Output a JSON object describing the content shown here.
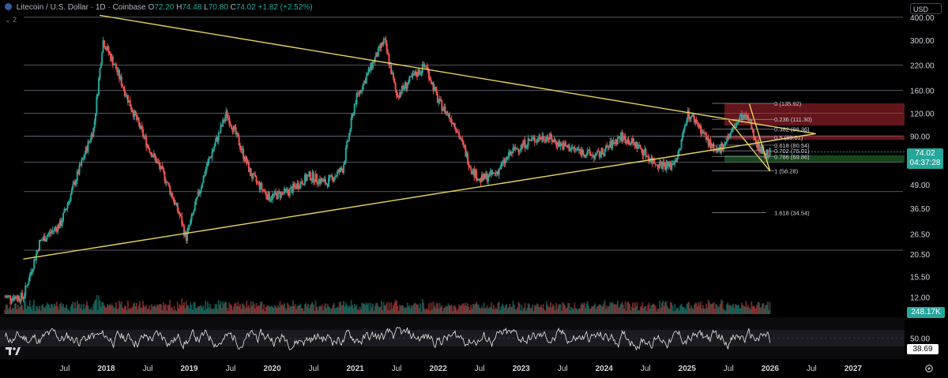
{
  "header": {
    "symbol_label": "Litecoin / U.S. Dollar · 1D · Coinbase",
    "open_label": "O",
    "open": "72.20",
    "high_label": "H",
    "high": "74.48",
    "low_label": "L",
    "low": "70.80",
    "close_label": "C",
    "close": "74.02",
    "change": "+1.82 (+2.52%)",
    "indicator_count": "2",
    "currency": "USD"
  },
  "price_tag": {
    "price": "74.02",
    "countdown": "04:37:28"
  },
  "volume_tag": "248.17K",
  "rsi_tag": "38.69",
  "colors": {
    "up": "#26a69a",
    "down": "#ef5350",
    "trendline": "#e6d25e",
    "grid": "#2a2e39",
    "fib_line": "#9598a1"
  },
  "icons": {
    "logo": "tradingview-logo-icon",
    "settings": "gear-icon",
    "symbol": "litecoin-icon"
  },
  "chart_data": [
    {
      "type": "candlestick",
      "title": "Litecoin / U.S. Dollar · 1D · Coinbase",
      "y_scale": "log",
      "ylim": [
        9.5,
        450
      ],
      "x_ticks": [
        "Jul",
        "2018",
        "Jul",
        "2019",
        "Jul",
        "2020",
        "Jul",
        "2021",
        "Jul",
        "2022",
        "Jul",
        "2023",
        "Jul",
        "2024",
        "Jul",
        "2025",
        "Jul",
        "2026",
        "Jul",
        "2027"
      ],
      "y_ticks": [
        "400.00",
        "300.00",
        "220.00",
        "160.00",
        "120.00",
        "90.00",
        "49.00",
        "36.50",
        "26.50",
        "20.50",
        "15.50",
        "12.00"
      ],
      "horizontal_levels": [
        400,
        220,
        160,
        120,
        90,
        65,
        45,
        21.6
      ],
      "series": [
        {
          "x": [
            2017.0,
            2017.2,
            2017.45,
            2017.65,
            2017.85,
            2017.96,
            2018.1,
            2018.3,
            2018.5,
            2018.7,
            2018.9,
            2018.96,
            2019.2,
            2019.45,
            2019.55,
            2019.75,
            2019.96,
            2020.2,
            2020.45,
            2020.65,
            2020.85,
            2021.0,
            2021.2,
            2021.35,
            2021.5,
            2021.7,
            2021.85,
            2022.0,
            2022.2,
            2022.4,
            2022.5,
            2022.7,
            2022.9,
            2023.1,
            2023.3,
            2023.5,
            2023.7,
            2023.9,
            2024.0,
            2024.2,
            2024.4,
            2024.6,
            2024.8,
            2024.9,
            2025.0,
            2025.1,
            2025.25,
            2025.35,
            2025.5,
            2025.65,
            2025.75,
            2025.85,
            2025.95,
            2026.0
          ],
          "y": [
            12,
            24,
            30,
            55,
            100,
            300,
            220,
            130,
            80,
            55,
            32,
            25,
            60,
            120,
            95,
            55,
            42,
            45,
            55,
            50,
            60,
            140,
            220,
            300,
            150,
            190,
            220,
            140,
            105,
            60,
            52,
            57,
            75,
            85,
            90,
            80,
            75,
            70,
            75,
            90,
            80,
            65,
            62,
            72,
            120,
            110,
            85,
            72,
            90,
            115,
            110,
            80,
            72,
            74.02
          ]
        }
      ],
      "last_price": 74.02,
      "trendlines": [
        {
          "from": [
            2017.92,
            410
          ],
          "to": [
            2026.55,
            93
          ]
        },
        {
          "from": [
            2017.0,
            19.3
          ],
          "to": [
            2026.55,
            93
          ]
        },
        {
          "from": [
            2025.5,
            110
          ],
          "to": [
            2026.0,
            58
          ]
        },
        {
          "from": [
            2025.75,
            135
          ],
          "to": [
            2026.0,
            58
          ]
        }
      ],
      "fib_levels": [
        {
          "label": "0 (135.92)",
          "value": 135.92
        },
        {
          "label": "0.236 (111.30)",
          "value": 111.3
        },
        {
          "label": "0.382 (98.36)",
          "value": 98.36
        },
        {
          "label": "0.5 (89.01)",
          "value": 89.01
        },
        {
          "label": "0.618 (80.54)",
          "value": 80.54
        },
        {
          "label": "0.702 (75.01)",
          "value": 75.01
        },
        {
          "label": "0.786 (69.86)",
          "value": 69.86
        },
        {
          "label": "1 (58.28)",
          "value": 58.28
        },
        {
          "label": "1.618 (34.54)",
          "value": 34.54
        }
      ],
      "zones": [
        {
          "from": 103,
          "to": 136,
          "color": "#b22833"
        },
        {
          "from": 86,
          "to": 91,
          "color": "#b22833"
        },
        {
          "from": 65,
          "to": 71,
          "color": "#2e7d32"
        }
      ]
    },
    {
      "type": "bar",
      "title": "Volume",
      "last_value": "248.17K"
    },
    {
      "type": "line",
      "title": "RSI",
      "ylim": [
        0,
        100
      ],
      "y_ticks": [
        "50.00"
      ],
      "last_value": 38.69
    }
  ]
}
